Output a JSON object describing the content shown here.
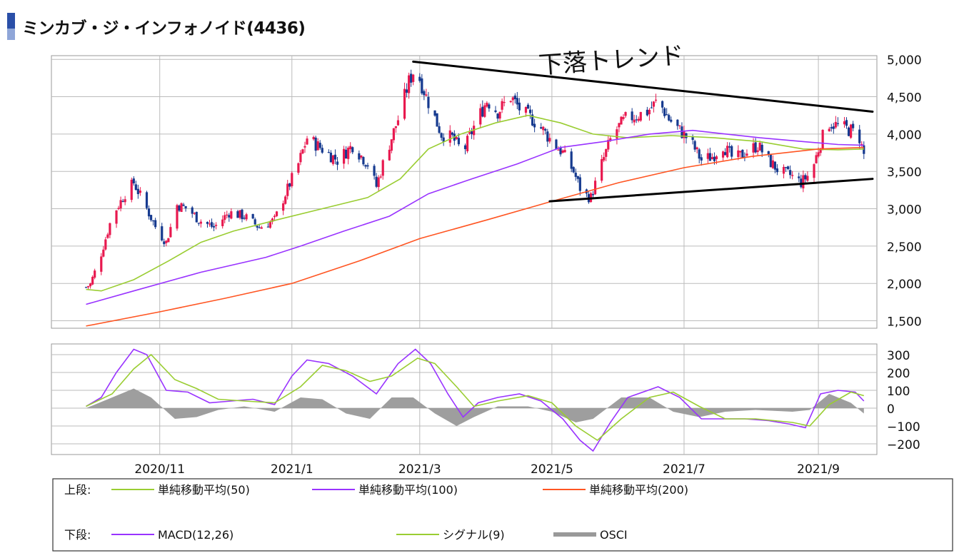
{
  "page": {
    "title": "ミンカブ・ジ・インフォノイド(4436)"
  },
  "annotation": {
    "handwritten": "下落トレンド"
  },
  "chart_data": [
    {
      "type": "candlestick",
      "name": "upper",
      "ylim": [
        1400,
        5050
      ],
      "yticks": [
        1500,
        2000,
        2500,
        3000,
        3500,
        4000,
        4500,
        5000
      ],
      "ytick_labels": [
        "1,500",
        "2,000",
        "2,500",
        "3,000",
        "3,500",
        "4,000",
        "4,500",
        "5,000"
      ],
      "xlim": [
        "2020-09-12",
        "2021-09-28"
      ],
      "xticks": [
        {
          "date": "2020-11-01",
          "label": "2020/11"
        },
        {
          "date": "2021-01-01",
          "label": "2021/1"
        },
        {
          "date": "2021-03-01",
          "label": "2021/3"
        },
        {
          "date": "2021-05-01",
          "label": "2021/5"
        },
        {
          "date": "2021-07-01",
          "label": "2021/7"
        },
        {
          "date": "2021-09-01",
          "label": "2021/9"
        }
      ],
      "up_color": "#e8194f",
      "down_color": "#163a8f",
      "price_path": [
        [
          "2020-09-28",
          1950
        ],
        [
          "2020-09-30",
          1990
        ],
        [
          "2020-10-05",
          2400
        ],
        [
          "2020-10-10",
          2900
        ],
        [
          "2020-10-16",
          3200
        ],
        [
          "2020-10-20",
          3350
        ],
        [
          "2020-10-26",
          3000
        ],
        [
          "2020-10-31",
          2700
        ],
        [
          "2020-11-04",
          2550
        ],
        [
          "2020-11-09",
          3050
        ],
        [
          "2020-11-14",
          3000
        ],
        [
          "2020-11-19",
          2850
        ],
        [
          "2020-11-26",
          2750
        ],
        [
          "2020-12-03",
          2950
        ],
        [
          "2020-12-10",
          2900
        ],
        [
          "2020-12-17",
          2750
        ],
        [
          "2020-12-24",
          2850
        ],
        [
          "2020-12-29",
          3200
        ],
        [
          "2021-01-04",
          3600
        ],
        [
          "2021-01-08",
          3950
        ],
        [
          "2021-01-15",
          3800
        ],
        [
          "2021-01-22",
          3650
        ],
        [
          "2021-01-29",
          3850
        ],
        [
          "2021-02-05",
          3600
        ],
        [
          "2021-02-09",
          3300
        ],
        [
          "2021-02-13",
          3700
        ],
        [
          "2021-02-19",
          4200
        ],
        [
          "2021-02-24",
          4700
        ],
        [
          "2021-02-27",
          4900
        ],
        [
          "2021-03-04",
          4500
        ],
        [
          "2021-03-11",
          4000
        ],
        [
          "2021-03-16",
          3950
        ],
        [
          "2021-03-21",
          3750
        ],
        [
          "2021-03-26",
          4100
        ],
        [
          "2021-04-01",
          4450
        ],
        [
          "2021-04-06",
          4300
        ],
        [
          "2021-04-12",
          4500
        ],
        [
          "2021-04-17",
          4300
        ],
        [
          "2021-04-22",
          4200
        ],
        [
          "2021-04-27",
          4050
        ],
        [
          "2021-05-01",
          3900
        ],
        [
          "2021-05-06",
          3750
        ],
        [
          "2021-05-11",
          3500
        ],
        [
          "2021-05-15",
          3200
        ],
        [
          "2021-05-19",
          3150
        ],
        [
          "2021-05-24",
          3600
        ],
        [
          "2021-05-29",
          4000
        ],
        [
          "2021-06-04",
          4200
        ],
        [
          "2021-06-09",
          4250
        ],
        [
          "2021-06-14",
          4300
        ],
        [
          "2021-06-19",
          4450
        ],
        [
          "2021-06-24",
          4200
        ],
        [
          "2021-06-29",
          4050
        ],
        [
          "2021-07-04",
          3900
        ],
        [
          "2021-07-09",
          3650
        ],
        [
          "2021-07-14",
          3700
        ],
        [
          "2021-07-19",
          3850
        ],
        [
          "2021-07-24",
          3650
        ],
        [
          "2021-07-29",
          3750
        ],
        [
          "2021-08-04",
          3850
        ],
        [
          "2021-08-09",
          3650
        ],
        [
          "2021-08-14",
          3500
        ],
        [
          "2021-08-19",
          3450
        ],
        [
          "2021-08-24",
          3350
        ],
        [
          "2021-08-29",
          3500
        ],
        [
          "2021-09-02",
          3900
        ],
        [
          "2021-09-06",
          4150
        ],
        [
          "2021-09-11",
          4100
        ],
        [
          "2021-09-16",
          4050
        ],
        [
          "2021-09-20",
          3950
        ],
        [
          "2021-09-22",
          3720
        ]
      ],
      "moving_averages": [
        {
          "name": "単純移動平均(50)",
          "color": "#9acd32",
          "points": [
            [
              "2020-09-28",
              1920
            ],
            [
              "2020-10-05",
              1900
            ],
            [
              "2020-10-20",
              2050
            ],
            [
              "2020-11-05",
              2300
            ],
            [
              "2020-11-20",
              2550
            ],
            [
              "2020-12-05",
              2700
            ],
            [
              "2020-12-25",
              2850
            ],
            [
              "2021-01-15",
              3000
            ],
            [
              "2021-02-05",
              3150
            ],
            [
              "2021-02-20",
              3400
            ],
            [
              "2021-03-05",
              3800
            ],
            [
              "2021-03-20",
              4000
            ],
            [
              "2021-04-05",
              4150
            ],
            [
              "2021-04-20",
              4250
            ],
            [
              "2021-05-05",
              4150
            ],
            [
              "2021-05-20",
              4000
            ],
            [
              "2021-06-05",
              3950
            ],
            [
              "2021-06-25",
              3980
            ],
            [
              "2021-07-15",
              3950
            ],
            [
              "2021-08-05",
              3900
            ],
            [
              "2021-08-25",
              3800
            ],
            [
              "2021-09-10",
              3790
            ],
            [
              "2021-09-22",
              3800
            ]
          ]
        },
        {
          "name": "単純移動平均(100)",
          "color": "#9933ff",
          "points": [
            [
              "2020-09-28",
              1720
            ],
            [
              "2020-10-20",
              1900
            ],
            [
              "2020-11-20",
              2150
            ],
            [
              "2020-12-20",
              2350
            ],
            [
              "2021-01-05",
              2500
            ],
            [
              "2021-01-25",
              2700
            ],
            [
              "2021-02-15",
              2900
            ],
            [
              "2021-03-05",
              3200
            ],
            [
              "2021-03-25",
              3400
            ],
            [
              "2021-04-15",
              3600
            ],
            [
              "2021-05-05",
              3820
            ],
            [
              "2021-05-25",
              3900
            ],
            [
              "2021-06-15",
              4000
            ],
            [
              "2021-07-05",
              4050
            ],
            [
              "2021-08-05",
              3950
            ],
            [
              "2021-08-25",
              3900
            ],
            [
              "2021-09-10",
              3860
            ],
            [
              "2021-09-22",
              3850
            ]
          ]
        },
        {
          "name": "単純移動平均(200)",
          "color": "#ff5522",
          "points": [
            [
              "2020-09-28",
              1430
            ],
            [
              "2020-11-01",
              1620
            ],
            [
              "2020-12-01",
              1800
            ],
            [
              "2021-01-01",
              2000
            ],
            [
              "2021-02-01",
              2300
            ],
            [
              "2021-03-01",
              2600
            ],
            [
              "2021-04-01",
              2850
            ],
            [
              "2021-05-01",
              3100
            ],
            [
              "2021-06-01",
              3350
            ],
            [
              "2021-07-01",
              3550
            ],
            [
              "2021-08-01",
              3700
            ],
            [
              "2021-09-01",
              3800
            ],
            [
              "2021-09-22",
              3820
            ]
          ]
        }
      ],
      "trend_lines": [
        {
          "from": [
            "2021-02-26",
            4970
          ],
          "to": [
            "2021-09-26",
            4300
          ],
          "color": "#000000"
        },
        {
          "from": [
            "2021-04-30",
            3100
          ],
          "to": [
            "2021-09-26",
            3400
          ],
          "color": "#000000"
        }
      ]
    },
    {
      "type": "line",
      "name": "lower",
      "ylim": [
        -260,
        360
      ],
      "yticks": [
        300,
        200,
        100,
        0,
        -100,
        -200
      ],
      "ytick_labels": [
        "300",
        "200",
        "100",
        "0",
        "−100",
        "−200"
      ],
      "series": [
        {
          "name": "MACD(12,26)",
          "color": "#9933ff",
          "points": [
            [
              "2020-09-28",
              10
            ],
            [
              "2020-10-05",
              60
            ],
            [
              "2020-10-12",
              200
            ],
            [
              "2020-10-20",
              330
            ],
            [
              "2020-10-26",
              300
            ],
            [
              "2020-11-04",
              100
            ],
            [
              "2020-11-14",
              90
            ],
            [
              "2020-11-24",
              30
            ],
            [
              "2020-12-04",
              40
            ],
            [
              "2020-12-14",
              50
            ],
            [
              "2020-12-24",
              20
            ],
            [
              "2021-01-01",
              180
            ],
            [
              "2021-01-08",
              270
            ],
            [
              "2021-01-18",
              250
            ],
            [
              "2021-01-29",
              180
            ],
            [
              "2021-02-09",
              80
            ],
            [
              "2021-02-19",
              250
            ],
            [
              "2021-02-27",
              330
            ],
            [
              "2021-03-06",
              250
            ],
            [
              "2021-03-14",
              80
            ],
            [
              "2021-03-21",
              -50
            ],
            [
              "2021-03-28",
              30
            ],
            [
              "2021-04-06",
              60
            ],
            [
              "2021-04-16",
              80
            ],
            [
              "2021-04-26",
              40
            ],
            [
              "2021-05-06",
              -60
            ],
            [
              "2021-05-14",
              -180
            ],
            [
              "2021-05-20",
              -240
            ],
            [
              "2021-05-28",
              -80
            ],
            [
              "2021-06-05",
              60
            ],
            [
              "2021-06-19",
              120
            ],
            [
              "2021-06-29",
              60
            ],
            [
              "2021-07-09",
              -60
            ],
            [
              "2021-07-19",
              -60
            ],
            [
              "2021-07-29",
              -60
            ],
            [
              "2021-08-09",
              -70
            ],
            [
              "2021-08-19",
              -90
            ],
            [
              "2021-08-26",
              -110
            ],
            [
              "2021-09-02",
              80
            ],
            [
              "2021-09-10",
              100
            ],
            [
              "2021-09-18",
              90
            ],
            [
              "2021-09-22",
              40
            ]
          ]
        },
        {
          "name": "シグナル(9)",
          "color": "#9acd32",
          "points": [
            [
              "2020-09-28",
              10
            ],
            [
              "2020-10-10",
              80
            ],
            [
              "2020-10-20",
              220
            ],
            [
              "2020-10-28",
              300
            ],
            [
              "2020-11-08",
              160
            ],
            [
              "2020-11-18",
              110
            ],
            [
              "2020-11-28",
              50
            ],
            [
              "2020-12-10",
              40
            ],
            [
              "2020-12-24",
              30
            ],
            [
              "2021-01-05",
              120
            ],
            [
              "2021-01-15",
              240
            ],
            [
              "2021-01-26",
              210
            ],
            [
              "2021-02-06",
              150
            ],
            [
              "2021-02-16",
              180
            ],
            [
              "2021-02-28",
              280
            ],
            [
              "2021-03-08",
              250
            ],
            [
              "2021-03-18",
              120
            ],
            [
              "2021-03-26",
              10
            ],
            [
              "2021-04-06",
              40
            ],
            [
              "2021-04-20",
              70
            ],
            [
              "2021-05-01",
              30
            ],
            [
              "2021-05-12",
              -100
            ],
            [
              "2021-05-22",
              -180
            ],
            [
              "2021-06-02",
              -60
            ],
            [
              "2021-06-15",
              60
            ],
            [
              "2021-06-26",
              90
            ],
            [
              "2021-07-08",
              10
            ],
            [
              "2021-07-20",
              -60
            ],
            [
              "2021-08-03",
              -60
            ],
            [
              "2021-08-20",
              -80
            ],
            [
              "2021-08-28",
              -100
            ],
            [
              "2021-09-06",
              20
            ],
            [
              "2021-09-16",
              90
            ],
            [
              "2021-09-22",
              70
            ]
          ]
        },
        {
          "name": "OSCI",
          "type": "area",
          "color": "#999999",
          "points": [
            [
              "2020-09-28",
              0
            ],
            [
              "2020-10-10",
              60
            ],
            [
              "2020-10-20",
              110
            ],
            [
              "2020-10-28",
              60
            ],
            [
              "2020-11-08",
              -60
            ],
            [
              "2020-11-18",
              -50
            ],
            [
              "2020-11-28",
              -10
            ],
            [
              "2020-12-10",
              10
            ],
            [
              "2020-12-24",
              -20
            ],
            [
              "2021-01-05",
              60
            ],
            [
              "2021-01-15",
              50
            ],
            [
              "2021-01-26",
              -30
            ],
            [
              "2021-02-06",
              -60
            ],
            [
              "2021-02-16",
              60
            ],
            [
              "2021-02-26",
              60
            ],
            [
              "2021-03-08",
              -30
            ],
            [
              "2021-03-18",
              -100
            ],
            [
              "2021-03-26",
              -50
            ],
            [
              "2021-04-06",
              10
            ],
            [
              "2021-04-20",
              10
            ],
            [
              "2021-05-01",
              -20
            ],
            [
              "2021-05-12",
              -80
            ],
            [
              "2021-05-20",
              -60
            ],
            [
              "2021-06-02",
              60
            ],
            [
              "2021-06-15",
              60
            ],
            [
              "2021-06-26",
              -20
            ],
            [
              "2021-07-08",
              -50
            ],
            [
              "2021-07-20",
              -20
            ],
            [
              "2021-08-03",
              -10
            ],
            [
              "2021-08-20",
              -20
            ],
            [
              "2021-08-28",
              -10
            ],
            [
              "2021-09-06",
              80
            ],
            [
              "2021-09-16",
              30
            ],
            [
              "2021-09-22",
              -30
            ]
          ]
        }
      ]
    }
  ],
  "legend": {
    "upper_label": "上段:",
    "lower_label": "下段:",
    "upper_items": [
      {
        "label": "単純移動平均(50)",
        "color": "#9acd32"
      },
      {
        "label": "単純移動平均(100)",
        "color": "#9933ff"
      },
      {
        "label": "単純移動平均(200)",
        "color": "#ff5522"
      }
    ],
    "lower_items": [
      {
        "label": "MACD(12,26)",
        "color": "#9933ff"
      },
      {
        "label": "シグナル(9)",
        "color": "#9acd32"
      },
      {
        "label": "OSCI",
        "color": "#999999"
      }
    ]
  }
}
